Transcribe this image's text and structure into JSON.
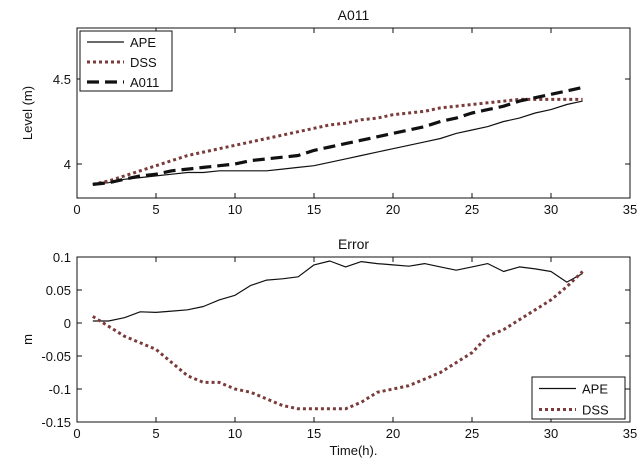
{
  "chart_data": [
    {
      "type": "line",
      "title": "A011",
      "xlabel": "",
      "ylabel": "Level (m)",
      "xlim": [
        0,
        35
      ],
      "ylim": [
        3.8,
        4.8
      ],
      "xticks": [
        0,
        5,
        10,
        15,
        20,
        25,
        30,
        35
      ],
      "yticks": [
        4,
        4.5
      ],
      "grid": false,
      "legend": "top-left",
      "series": [
        {
          "name": "APE",
          "style": "solid",
          "color": "#111111",
          "x": [
            1,
            2,
            3,
            4,
            5,
            6,
            7,
            8,
            9,
            10,
            11,
            12,
            13,
            14,
            15,
            16,
            17,
            18,
            19,
            20,
            21,
            22,
            23,
            24,
            25,
            26,
            27,
            28,
            29,
            30,
            31,
            32
          ],
          "y": [
            3.88,
            3.89,
            3.91,
            3.92,
            3.93,
            3.94,
            3.95,
            3.95,
            3.96,
            3.96,
            3.96,
            3.96,
            3.97,
            3.98,
            3.99,
            4.01,
            4.03,
            4.05,
            4.07,
            4.09,
            4.11,
            4.13,
            4.15,
            4.18,
            4.2,
            4.22,
            4.25,
            4.27,
            4.3,
            4.32,
            4.35,
            4.37
          ]
        },
        {
          "name": "DSS",
          "style": "dotted",
          "color": "#7a3b3b",
          "x": [
            1,
            2,
            3,
            4,
            5,
            6,
            7,
            8,
            9,
            10,
            11,
            12,
            13,
            14,
            15,
            16,
            17,
            18,
            19,
            20,
            21,
            22,
            23,
            24,
            25,
            26,
            27,
            28,
            29,
            30,
            31,
            32
          ],
          "y": [
            3.88,
            3.9,
            3.93,
            3.96,
            3.99,
            4.02,
            4.05,
            4.07,
            4.09,
            4.11,
            4.13,
            4.15,
            4.17,
            4.19,
            4.21,
            4.23,
            4.24,
            4.26,
            4.27,
            4.29,
            4.3,
            4.31,
            4.33,
            4.34,
            4.35,
            4.36,
            4.37,
            4.38,
            4.38,
            4.38,
            4.38,
            4.38
          ]
        },
        {
          "name": "A011",
          "style": "dashed",
          "color": "#111111",
          "x": [
            1,
            2,
            3,
            4,
            5,
            6,
            7,
            8,
            9,
            10,
            11,
            12,
            13,
            14,
            15,
            16,
            17,
            18,
            19,
            20,
            21,
            22,
            23,
            24,
            25,
            26,
            27,
            28,
            29,
            30,
            31,
            32
          ],
          "y": [
            3.88,
            3.89,
            3.91,
            3.93,
            3.94,
            3.96,
            3.97,
            3.98,
            3.99,
            4.0,
            4.02,
            4.03,
            4.04,
            4.05,
            4.08,
            4.1,
            4.12,
            4.14,
            4.16,
            4.18,
            4.2,
            4.22,
            4.25,
            4.27,
            4.3,
            4.32,
            4.34,
            4.37,
            4.39,
            4.41,
            4.43,
            4.45
          ]
        }
      ]
    },
    {
      "type": "line",
      "title": "Error",
      "xlabel": "Time(h).",
      "ylabel": "m",
      "xlim": [
        0,
        35
      ],
      "ylim": [
        -0.15,
        0.1
      ],
      "xticks": [
        0,
        5,
        10,
        15,
        20,
        25,
        30,
        35
      ],
      "yticks": [
        -0.15,
        -0.1,
        -0.05,
        0,
        0.05,
        0.1
      ],
      "grid": false,
      "legend": "bottom-right",
      "series": [
        {
          "name": "APE",
          "style": "solid",
          "color": "#111111",
          "x": [
            1,
            2,
            3,
            4,
            5,
            6,
            7,
            8,
            9,
            10,
            11,
            12,
            13,
            14,
            15,
            16,
            17,
            18,
            19,
            20,
            21,
            22,
            23,
            24,
            25,
            26,
            27,
            28,
            29,
            30,
            31,
            32
          ],
          "y": [
            0.003,
            0.003,
            0.008,
            0.017,
            0.016,
            0.018,
            0.02,
            0.025,
            0.035,
            0.042,
            0.057,
            0.065,
            0.067,
            0.07,
            0.088,
            0.094,
            0.085,
            0.093,
            0.09,
            0.088,
            0.086,
            0.09,
            0.085,
            0.08,
            0.085,
            0.09,
            0.078,
            0.085,
            0.082,
            0.078,
            0.062,
            0.075
          ]
        },
        {
          "name": "DSS",
          "style": "dotted",
          "color": "#7a3b3b",
          "x": [
            1,
            2,
            3,
            4,
            5,
            6,
            7,
            8,
            9,
            10,
            11,
            12,
            13,
            14,
            15,
            16,
            17,
            18,
            19,
            20,
            21,
            22,
            23,
            24,
            25,
            26,
            27,
            28,
            29,
            30,
            31,
            32
          ],
          "y": [
            0.01,
            -0.005,
            -0.02,
            -0.03,
            -0.04,
            -0.06,
            -0.08,
            -0.09,
            -0.09,
            -0.1,
            -0.105,
            -0.115,
            -0.125,
            -0.13,
            -0.13,
            -0.13,
            -0.13,
            -0.12,
            -0.105,
            -0.1,
            -0.095,
            -0.085,
            -0.075,
            -0.06,
            -0.045,
            -0.02,
            -0.01,
            0.005,
            0.02,
            0.035,
            0.055,
            0.078
          ]
        }
      ]
    }
  ]
}
